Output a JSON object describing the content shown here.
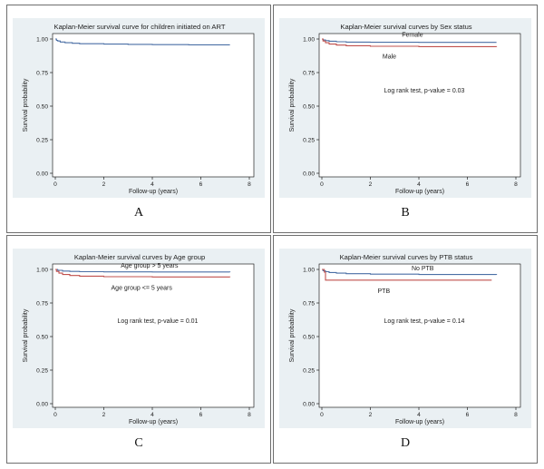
{
  "charts": [
    {
      "letter": "A",
      "chart_data": {
        "type": "line",
        "title": "Kaplan-Meier survival curve for children initiated on ART",
        "xlabel": "Follow-up (years)",
        "ylabel": "Survival probability",
        "xlim": [
          0,
          8
        ],
        "ylim": [
          0,
          1
        ],
        "xticks": [
          "0",
          "2",
          "4",
          "6",
          "8"
        ],
        "yticks": [
          "0.00",
          "0.25",
          "0.50",
          "0.75",
          "1.00"
        ],
        "grid": false,
        "annotation": "",
        "series": [
          {
            "label": "",
            "color": "#4a6fa5",
            "points": [
              [
                0,
                1.0
              ],
              [
                0.05,
                0.99
              ],
              [
                0.1,
                0.985
              ],
              [
                0.2,
                0.978
              ],
              [
                0.4,
                0.972
              ],
              [
                0.7,
                0.968
              ],
              [
                1.0,
                0.965
              ],
              [
                2.0,
                0.962
              ],
              [
                3.0,
                0.96
              ],
              [
                4.0,
                0.958
              ],
              [
                5.5,
                0.957
              ],
              [
                7.2,
                0.957
              ]
            ]
          }
        ]
      }
    },
    {
      "letter": "B",
      "chart_data": {
        "type": "line",
        "title": "Kaplan-Meier survival curves by Sex status",
        "xlabel": "Follow-up (years)",
        "ylabel": "Survival probability",
        "xlim": [
          0,
          8
        ],
        "ylim": [
          0,
          1
        ],
        "xticks": [
          "0",
          "2",
          "4",
          "6",
          "8"
        ],
        "yticks": [
          "0.00",
          "0.25",
          "0.50",
          "0.75",
          "1.00"
        ],
        "grid": false,
        "annotation": "Log rank test, p-value = 0.03",
        "series": [
          {
            "label": "Female",
            "color": "#4a6fa5",
            "points": [
              [
                0,
                1.0
              ],
              [
                0.05,
                0.993
              ],
              [
                0.15,
                0.988
              ],
              [
                0.3,
                0.984
              ],
              [
                0.6,
                0.98
              ],
              [
                1.0,
                0.977
              ],
              [
                2.0,
                0.976
              ],
              [
                4.0,
                0.975
              ],
              [
                7.2,
                0.975
              ]
            ]
          },
          {
            "label": "Male",
            "color": "#c0504d",
            "points": [
              [
                0,
                1.0
              ],
              [
                0.05,
                0.985
              ],
              [
                0.15,
                0.972
              ],
              [
                0.3,
                0.962
              ],
              [
                0.6,
                0.955
              ],
              [
                1.0,
                0.95
              ],
              [
                2.0,
                0.946
              ],
              [
                4.0,
                0.943
              ],
              [
                7.2,
                0.942
              ]
            ]
          }
        ]
      }
    },
    {
      "letter": "C",
      "chart_data": {
        "type": "line",
        "title": "Kaplan-Meier survival curves by Age group",
        "xlabel": "Follow-up (years)",
        "ylabel": "Survival probability",
        "xlim": [
          0,
          8
        ],
        "ylim": [
          0,
          1
        ],
        "xticks": [
          "0",
          "2",
          "4",
          "6",
          "8"
        ],
        "yticks": [
          "0.00",
          "0.25",
          "0.50",
          "0.75",
          "1.00"
        ],
        "grid": false,
        "annotation": "Log rank test, p-value = 0.01",
        "series": [
          {
            "label": "Age group > 5 years",
            "color": "#4a6fa5",
            "points": [
              [
                0,
                1.0
              ],
              [
                0.1,
                0.993
              ],
              [
                0.3,
                0.988
              ],
              [
                0.6,
                0.985
              ],
              [
                1.0,
                0.983
              ],
              [
                2.0,
                0.982
              ],
              [
                4.0,
                0.981
              ],
              [
                7.2,
                0.98
              ]
            ]
          },
          {
            "label": "Age group <= 5 years",
            "color": "#c0504d",
            "points": [
              [
                0,
                1.0
              ],
              [
                0.05,
                0.985
              ],
              [
                0.15,
                0.972
              ],
              [
                0.3,
                0.962
              ],
              [
                0.6,
                0.955
              ],
              [
                1.0,
                0.95
              ],
              [
                2.0,
                0.946
              ],
              [
                4.0,
                0.944
              ],
              [
                7.2,
                0.943
              ]
            ]
          }
        ]
      }
    },
    {
      "letter": "D",
      "chart_data": {
        "type": "line",
        "title": "Kaplan-Meier survival curves by PTB status",
        "xlabel": "Follow-up (years)",
        "ylabel": "Survival probability",
        "xlim": [
          0,
          8
        ],
        "ylim": [
          0,
          1
        ],
        "xticks": [
          "0",
          "2",
          "4",
          "6",
          "8"
        ],
        "yticks": [
          "0.00",
          "0.25",
          "0.50",
          "0.75",
          "1.00"
        ],
        "grid": false,
        "annotation": "Log rank test, p-value = 0.14",
        "series": [
          {
            "label": "No PTB",
            "color": "#4a6fa5",
            "points": [
              [
                0,
                1.0
              ],
              [
                0.05,
                0.99
              ],
              [
                0.15,
                0.983
              ],
              [
                0.3,
                0.977
              ],
              [
                0.6,
                0.972
              ],
              [
                1.0,
                0.968
              ],
              [
                2.0,
                0.965
              ],
              [
                4.0,
                0.962
              ],
              [
                7.2,
                0.96
              ]
            ]
          },
          {
            "label": "PTB",
            "color": "#c0504d",
            "points": [
              [
                0,
                1.0
              ],
              [
                0.1,
                0.98
              ],
              [
                0.15,
                0.92
              ],
              [
                7.0,
                0.92
              ]
            ]
          }
        ]
      }
    }
  ]
}
